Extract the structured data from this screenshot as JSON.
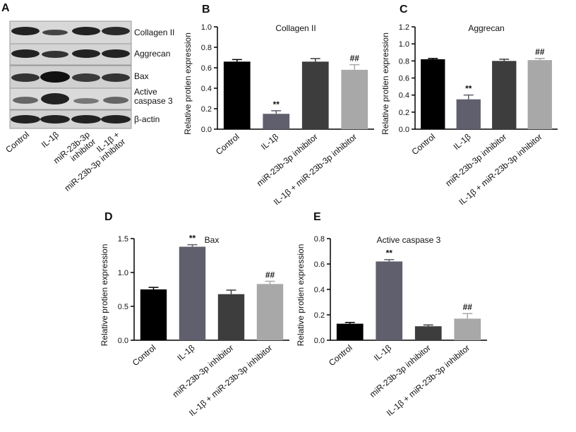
{
  "blot": {
    "label": "A",
    "bands": [
      "Collagen II",
      "Aggrecan",
      "Bax",
      "Active\ncaspase 3",
      "β-actin"
    ],
    "lanes": [
      "Control",
      "IL-1β",
      "miR-23b-3p\ninhibitor",
      "IL-1β +\nmiR-23b-3p inhibitor"
    ]
  },
  "chart_data": [
    {
      "type": "bar",
      "panel": "B",
      "title": "Collagen II",
      "ylabel": "Relative protien expression",
      "categories": [
        "Control",
        "IL-1β",
        "miR-23b-3p inhibitor",
        "IL-1β + miR-23b-3p inhibitor"
      ],
      "values": [
        0.66,
        0.15,
        0.66,
        0.58
      ],
      "errors": [
        0.02,
        0.03,
        0.03,
        0.05
      ],
      "annotations": [
        null,
        "**",
        null,
        "##"
      ],
      "colors": [
        "#000000",
        "#5f5f6e",
        "#3d3d3d",
        "#a8a8a8"
      ],
      "ylim": [
        0,
        1
      ],
      "yticks": [
        {
          "value": 0,
          "label": "0.0"
        },
        0.2,
        0.4,
        0.6,
        0.8,
        {
          "value": 1,
          "label": "1.0"
        }
      ]
    },
    {
      "type": "bar",
      "panel": "C",
      "title": "Aggrecan",
      "ylabel": "Relative protien expression",
      "categories": [
        "Control",
        "IL-1β",
        "miR-23b-3p inhibitor",
        "IL-1β + miR-23b-3p inhibitor"
      ],
      "values": [
        0.82,
        0.35,
        0.8,
        0.81
      ],
      "errors": [
        0.01,
        0.05,
        0.02,
        0.02
      ],
      "annotations": [
        null,
        "**",
        null,
        "##"
      ],
      "colors": [
        "#000000",
        "#5f5f6e",
        "#3d3d3d",
        "#a8a8a8"
      ],
      "ylim": [
        0,
        1.2
      ],
      "yticks": [
        {
          "value": 0,
          "label": "0.0"
        },
        0.2,
        0.4,
        0.6,
        0.8,
        {
          "value": 1,
          "label": "1.0"
        },
        1.2
      ]
    },
    {
      "type": "bar",
      "panel": "D",
      "title": "Bax",
      "ylabel": "Relative protien expression",
      "categories": [
        "Control",
        "IL-1β",
        "miR-23b-3p inhibitor",
        "IL-1β + miR-23b-3p inhibitor"
      ],
      "values": [
        0.75,
        1.38,
        0.68,
        0.83
      ],
      "errors": [
        0.03,
        0.03,
        0.06,
        0.04
      ],
      "annotations": [
        null,
        "**",
        null,
        "##"
      ],
      "colors": [
        "#000000",
        "#5f5f6e",
        "#3d3d3d",
        "#a8a8a8"
      ],
      "ylim": [
        0,
        1.5
      ],
      "yticks": [
        {
          "value": 0,
          "label": "0.0"
        },
        0.5,
        {
          "value": 1,
          "label": "1.0"
        },
        1.5
      ]
    },
    {
      "type": "bar",
      "panel": "E",
      "title": "Active caspase 3",
      "ylabel": "Relative protien expression",
      "categories": [
        "Control",
        "IL-1β",
        "miR-23b-3p inhibitor",
        "IL-1β + miR-23b-3p inhibitor"
      ],
      "values": [
        0.13,
        0.62,
        0.11,
        0.17
      ],
      "errors": [
        0.01,
        0.015,
        0.01,
        0.04
      ],
      "annotations": [
        null,
        "**",
        null,
        "##"
      ],
      "colors": [
        "#000000",
        "#5f5f6e",
        "#3d3d3d",
        "#a8a8a8"
      ],
      "ylim": [
        0,
        0.8
      ],
      "yticks": [
        {
          "value": 0,
          "label": "0.0"
        },
        0.2,
        0.4,
        0.6,
        0.8
      ]
    }
  ]
}
